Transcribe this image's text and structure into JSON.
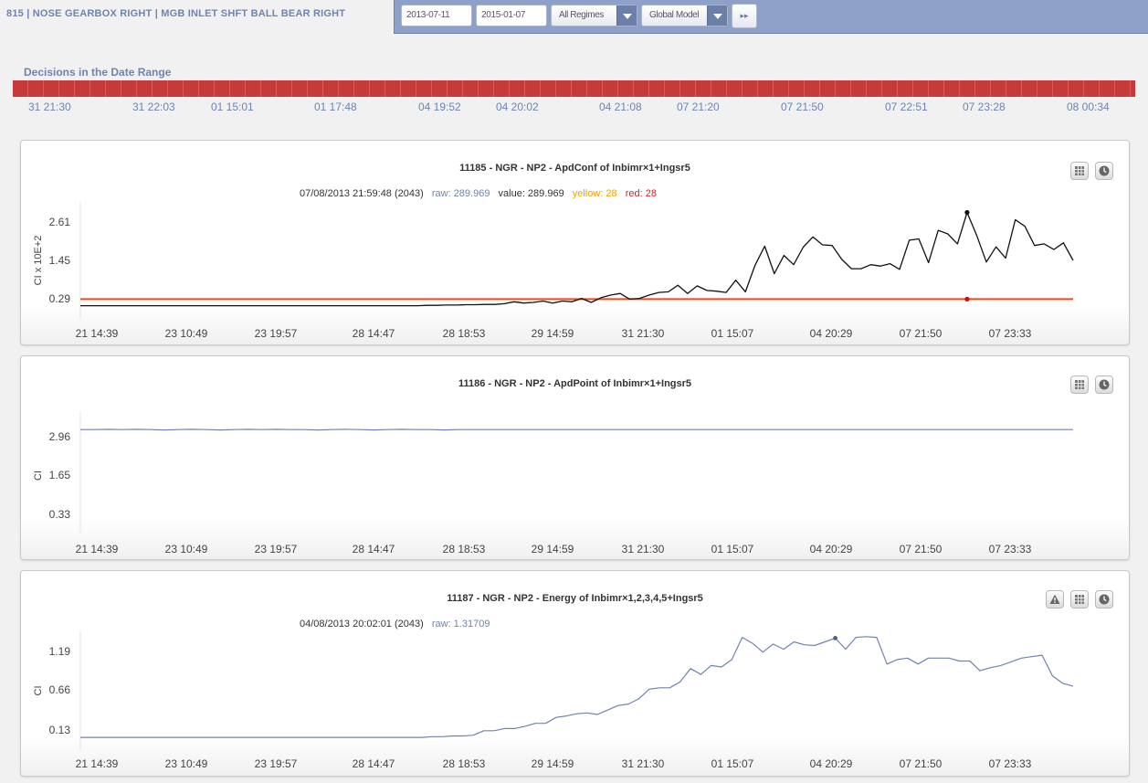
{
  "header": {
    "title": "815 | NOSE GEARBOX RIGHT | MGB INLET SHFT BALL BEAR RIGHT",
    "start_date": "2013-07-11",
    "end_date": "2015-01-07",
    "regime": "All Regimes",
    "model": "Global Model",
    "go_label": "▸▸"
  },
  "decisions": {
    "title": "Decisions in the Date Range",
    "labels": [
      "31 21:30",
      "31 22:03",
      "01 15:01",
      "01 17:48",
      "04 19:52",
      "04 20:02",
      "04 21:08",
      "07 21:20",
      "07 21:50",
      "07 22:51",
      "07 23:28",
      "08 00:34"
    ]
  },
  "charts": [
    {
      "title": "11185 - NGR - NP2 - ApdConf of Inbimr×1+Ingsr5",
      "info": {
        "timestamp": "07/08/2013 21:59:48 (2043)",
        "raw": "raw: 289.969",
        "value": "value: 289.969",
        "yellow": "yellow: 28",
        "red": "red: 28"
      },
      "ylabel": "CI x 10E+2",
      "yticks": [
        "2.61",
        "1.45",
        "0.29"
      ],
      "xticks": [
        "21 14:39",
        "23 10:49",
        "23 19:57",
        "28 14:47",
        "28 18:53",
        "29 14:59",
        "31 21:30",
        "01 15:07",
        "04 20:29",
        "07 21:50",
        "07 23:33"
      ]
    },
    {
      "title": "11186 - NGR - NP2 - ApdPoint of Inbimr×1+Ingsr5",
      "ylabel": "CI",
      "yticks": [
        "2.96",
        "1.65",
        "0.33"
      ],
      "xticks": [
        "21 14:39",
        "23 10:49",
        "23 19:57",
        "28 14:47",
        "28 18:53",
        "29 14:59",
        "31 21:30",
        "01 15:07",
        "04 20:29",
        "07 21:50",
        "07 23:33"
      ]
    },
    {
      "title": "11187 - NGR - NP2 - Energy of Inbimr×1,2,3,4,5+Ingsr5",
      "info": {
        "timestamp": "04/08/2013 20:02:01 (2043)",
        "raw": "raw: 1.31709"
      },
      "ylabel": "CI",
      "yticks": [
        "1.19",
        "0.66",
        "0.13"
      ],
      "xticks": [
        "21 14:39",
        "23 10:49",
        "23 19:57",
        "28 14:47",
        "28 18:53",
        "29 14:59",
        "31 21:30",
        "01 15:07",
        "04 20:29",
        "07 21:50",
        "07 23:33"
      ]
    }
  ],
  "chart_data": [
    {
      "type": "line",
      "title": "11185 - NGR - NP2 - ApdConf of Inbimr×1+Ingsr5",
      "ylabel": "CI x 10E+2",
      "ylim": [
        0,
        3.2
      ],
      "series": [
        {
          "values": [
            0.08,
            0.08,
            0.08,
            0.08,
            0.08,
            0.08,
            0.08,
            0.08,
            0.08,
            0.08,
            0.08,
            0.08,
            0.08,
            0.08,
            0.08,
            0.08,
            0.08,
            0.08,
            0.08,
            0.08,
            0.08,
            0.08,
            0.08,
            0.08,
            0.08,
            0.08,
            0.08,
            0.08,
            0.08,
            0.08,
            0.08,
            0.08,
            0.08,
            0.08,
            0.08,
            0.08,
            0.09,
            0.09,
            0.1,
            0.1,
            0.11,
            0.11,
            0.12,
            0.12,
            0.14,
            0.2,
            0.16,
            0.18,
            0.22,
            0.16,
            0.22,
            0.2,
            0.3,
            0.18,
            0.32,
            0.4,
            0.45,
            0.28,
            0.3,
            0.4,
            0.48,
            0.5,
            0.7,
            0.45,
            0.68,
            0.54,
            0.52,
            0.48,
            0.85,
            0.5,
            1.3,
            1.88,
            1.05,
            1.6,
            1.32,
            1.85,
            2.16,
            1.92,
            1.9,
            1.48,
            1.2,
            1.2,
            1.32,
            1.28,
            1.35,
            1.18,
            2.06,
            2.1,
            1.38,
            2.36,
            2.25,
            1.95,
            2.9,
            2.2,
            1.4,
            1.86,
            1.52,
            2.68,
            2.48,
            1.9,
            1.95,
            1.78,
            1.98,
            1.45
          ]
        },
        {
          "name": "red",
          "values": [
            0.28
          ]
        }
      ]
    },
    {
      "type": "line",
      "title": "11186 - NGR - NP2 - ApdPoint of Inbimr×1+Ingsr5",
      "ylabel": "CI",
      "ylim": [
        0,
        3.3
      ],
      "series": [
        {
          "values": [
            3.2,
            3.2,
            3.21,
            3.2,
            3.21,
            3.2,
            3.19,
            3.2,
            3.21,
            3.2,
            3.19,
            3.2,
            3.21,
            3.2,
            3.21,
            3.2,
            3.2,
            3.19,
            3.2,
            3.21,
            3.2,
            3.19,
            3.2,
            3.21,
            3.2,
            3.2,
            3.19,
            3.2,
            3.2,
            3.2,
            3.2,
            3.2,
            3.2,
            3.2,
            3.2,
            3.2,
            3.2,
            3.2,
            3.2,
            3.2,
            3.2,
            3.2,
            3.2,
            3.2,
            3.2,
            3.2,
            3.2,
            3.2,
            3.2,
            3.2,
            3.2,
            3.2,
            3.2,
            3.2,
            3.2,
            3.2,
            3.2,
            3.2,
            3.2,
            3.2,
            3.2,
            3.2,
            3.2,
            3.2,
            3.2,
            3.2,
            3.2,
            3.2,
            3.2,
            3.2,
            3.2,
            3.2
          ]
        }
      ]
    },
    {
      "type": "line",
      "title": "11187 - NGR - NP2 - Energy of Inbimr×1,2,3,4,5+Ingsr5",
      "ylabel": "CI",
      "ylim": [
        0,
        1.5
      ],
      "series": [
        {
          "values": [
            0.03,
            0.03,
            0.03,
            0.03,
            0.03,
            0.03,
            0.03,
            0.03,
            0.03,
            0.03,
            0.03,
            0.03,
            0.03,
            0.03,
            0.03,
            0.03,
            0.03,
            0.03,
            0.03,
            0.03,
            0.03,
            0.03,
            0.03,
            0.03,
            0.03,
            0.03,
            0.03,
            0.03,
            0.03,
            0.03,
            0.03,
            0.03,
            0.03,
            0.03,
            0.04,
            0.04,
            0.05,
            0.05,
            0.06,
            0.12,
            0.12,
            0.15,
            0.15,
            0.18,
            0.22,
            0.22,
            0.3,
            0.32,
            0.35,
            0.36,
            0.34,
            0.4,
            0.46,
            0.48,
            0.55,
            0.68,
            0.7,
            0.7,
            0.78,
            0.96,
            0.88,
            1.0,
            0.98,
            1.08,
            1.38,
            1.3,
            1.18,
            1.29,
            1.22,
            1.32,
            1.28,
            1.27,
            1.32,
            1.37,
            1.22,
            1.38,
            1.39,
            1.38,
            1.02,
            1.08,
            1.1,
            1.02,
            1.1,
            1.1,
            1.1,
            1.06,
            1.06,
            0.93,
            0.97,
            1.0,
            1.05,
            1.1,
            1.12,
            1.14,
            0.86,
            0.76,
            0.72
          ]
        }
      ]
    }
  ]
}
